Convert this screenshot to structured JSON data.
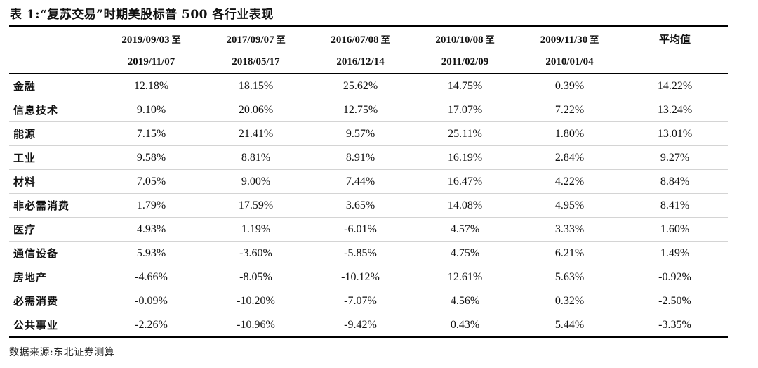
{
  "title": "表 1:“复苏交易”时期美股标普 500 各行业表现",
  "table": {
    "periods": [
      {
        "start": "2019/09/03",
        "sep": "至",
        "end": "2019/11/07"
      },
      {
        "start": "2017/09/07",
        "sep": "至",
        "end": "2018/05/17"
      },
      {
        "start": "2016/07/08",
        "sep": "至",
        "end": "2016/12/14"
      },
      {
        "start": "2010/10/08",
        "sep": "至",
        "end": "2011/02/09"
      },
      {
        "start": "2009/11/30",
        "sep": "至",
        "end": "2010/01/04"
      }
    ],
    "avg_label": "平均值",
    "rows": [
      {
        "sector": "金融",
        "values": [
          "12.18%",
          "18.15%",
          "25.62%",
          "14.75%",
          "0.39%",
          "14.22%"
        ]
      },
      {
        "sector": "信息技术",
        "values": [
          "9.10%",
          "20.06%",
          "12.75%",
          "17.07%",
          "7.22%",
          "13.24%"
        ]
      },
      {
        "sector": "能源",
        "values": [
          "7.15%",
          "21.41%",
          "9.57%",
          "25.11%",
          "1.80%",
          "13.01%"
        ]
      },
      {
        "sector": "工业",
        "values": [
          "9.58%",
          "8.81%",
          "8.91%",
          "16.19%",
          "2.84%",
          "9.27%"
        ]
      },
      {
        "sector": "材料",
        "values": [
          "7.05%",
          "9.00%",
          "7.44%",
          "16.47%",
          "4.22%",
          "8.84%"
        ]
      },
      {
        "sector": "非必需消费",
        "values": [
          "1.79%",
          "17.59%",
          "3.65%",
          "14.08%",
          "4.95%",
          "8.41%"
        ]
      },
      {
        "sector": "医疗",
        "values": [
          "4.93%",
          "1.19%",
          "-6.01%",
          "4.57%",
          "3.33%",
          "1.60%"
        ]
      },
      {
        "sector": "通信设备",
        "values": [
          "5.93%",
          "-3.60%",
          "-5.85%",
          "4.75%",
          "6.21%",
          "1.49%"
        ]
      },
      {
        "sector": "房地产",
        "values": [
          "-4.66%",
          "-8.05%",
          "-10.12%",
          "12.61%",
          "5.63%",
          "-0.92%"
        ]
      },
      {
        "sector": "必需消费",
        "values": [
          "-0.09%",
          "-10.20%",
          "-7.07%",
          "4.56%",
          "0.32%",
          "-2.50%"
        ]
      },
      {
        "sector": "公共事业",
        "values": [
          "-2.26%",
          "-10.96%",
          "-9.42%",
          "0.43%",
          "5.44%",
          "-3.35%"
        ]
      }
    ]
  },
  "source": "数据来源:东北证券测算"
}
